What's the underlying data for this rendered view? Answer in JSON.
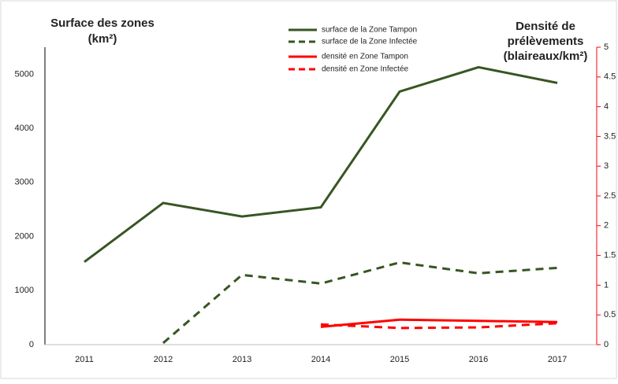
{
  "chart_data": {
    "type": "line",
    "y_label": [
      "Surface des zones",
      "(km²)"
    ],
    "y2_label": [
      "Densité de",
      "prélèvements",
      "(blaireaux/km²)"
    ],
    "categories": [
      "2011",
      "2012",
      "2013",
      "2014",
      "2015",
      "2016",
      "2017"
    ],
    "ylim": [
      0,
      5500
    ],
    "yticks": [
      0,
      1000,
      2000,
      3000,
      4000,
      5000
    ],
    "y2lim": [
      0,
      5
    ],
    "y2ticks": [
      0,
      0.5,
      1,
      1.5,
      2,
      2.5,
      3,
      3.5,
      4,
      4.5,
      5
    ],
    "legend": "top",
    "series": [
      {
        "name": "surface de la Zone Tampon",
        "color": "#375623",
        "dash": false,
        "values": [
          1530,
          2620,
          2370,
          2540,
          4680,
          5130,
          4840
        ]
      },
      {
        "name": "surface de la Zone Infectée",
        "color": "#375623",
        "dash": true,
        "values": [
          null,
          30,
          1290,
          1130,
          1520,
          1320,
          1420
        ]
      },
      {
        "name": "densité en Zone Tampon",
        "color": "#ff0000",
        "dash": false,
        "axis": "y2",
        "values": [
          null,
          null,
          null,
          0.3,
          0.42,
          0.4,
          0.38
        ]
      },
      {
        "name": "densité en Zone Infectée",
        "color": "#ff0000",
        "dash": true,
        "axis": "y2",
        "values": [
          null,
          null,
          null,
          0.34,
          0.28,
          0.29,
          0.36
        ]
      }
    ]
  }
}
